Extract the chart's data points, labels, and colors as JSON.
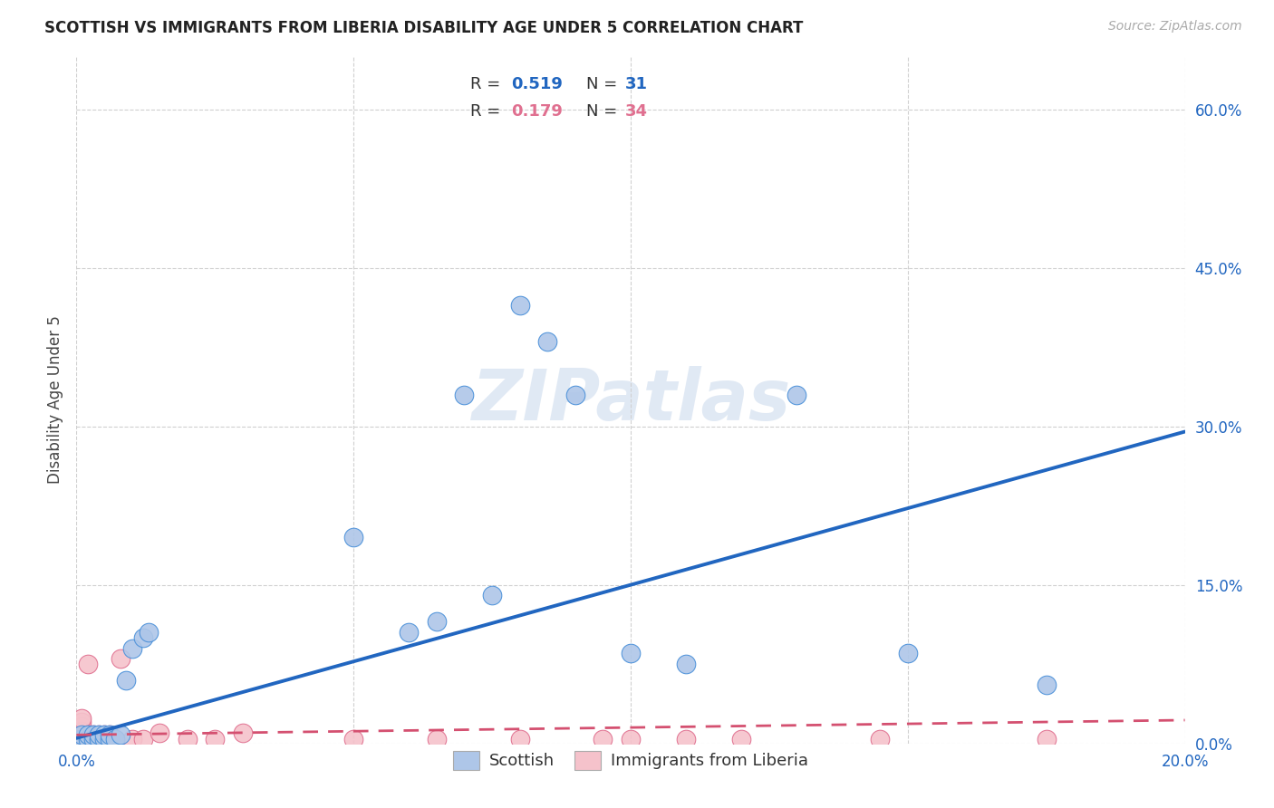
{
  "title": "SCOTTISH VS IMMIGRANTS FROM LIBERIA DISABILITY AGE UNDER 5 CORRELATION CHART",
  "source": "Source: ZipAtlas.com",
  "ylabel": "Disability Age Under 5",
  "xlim": [
    0.0,
    0.2
  ],
  "ylim": [
    0.0,
    0.65
  ],
  "yticks": [
    0.0,
    0.15,
    0.3,
    0.45,
    0.6
  ],
  "xticks": [
    0.0,
    0.05,
    0.1,
    0.15,
    0.2
  ],
  "background_color": "#ffffff",
  "grid_color": "#d0d0d0",
  "watermark": "ZIPatlas",
  "scottish": {
    "color": "#aec6e8",
    "edge_color": "#4a90d9",
    "line_color": "#2166c0",
    "R": 0.519,
    "N": 31,
    "x": [
      0.001,
      0.001,
      0.002,
      0.002,
      0.003,
      0.003,
      0.004,
      0.004,
      0.005,
      0.005,
      0.006,
      0.006,
      0.007,
      0.008,
      0.009,
      0.01,
      0.012,
      0.013,
      0.05,
      0.06,
      0.065,
      0.07,
      0.075,
      0.08,
      0.085,
      0.09,
      0.1,
      0.11,
      0.13,
      0.15,
      0.175
    ],
    "y": [
      0.004,
      0.008,
      0.004,
      0.008,
      0.004,
      0.008,
      0.004,
      0.008,
      0.004,
      0.008,
      0.004,
      0.008,
      0.004,
      0.008,
      0.06,
      0.09,
      0.1,
      0.105,
      0.195,
      0.105,
      0.115,
      0.33,
      0.14,
      0.415,
      0.38,
      0.33,
      0.085,
      0.075,
      0.33,
      0.085,
      0.055
    ],
    "trend_x": [
      0.0,
      0.2
    ],
    "trend_y": [
      0.005,
      0.295
    ]
  },
  "liberia": {
    "color": "#f5c2cb",
    "edge_color": "#e07090",
    "line_color": "#d45070",
    "R": 0.179,
    "N": 34,
    "x": [
      0.001,
      0.001,
      0.001,
      0.001,
      0.001,
      0.001,
      0.002,
      0.002,
      0.002,
      0.003,
      0.003,
      0.004,
      0.004,
      0.005,
      0.005,
      0.006,
      0.006,
      0.007,
      0.008,
      0.01,
      0.012,
      0.015,
      0.02,
      0.025,
      0.03,
      0.05,
      0.065,
      0.08,
      0.095,
      0.1,
      0.11,
      0.12,
      0.145,
      0.175
    ],
    "y": [
      0.004,
      0.008,
      0.012,
      0.016,
      0.02,
      0.024,
      0.004,
      0.008,
      0.075,
      0.004,
      0.008,
      0.004,
      0.008,
      0.004,
      0.008,
      0.004,
      0.008,
      0.004,
      0.08,
      0.004,
      0.004,
      0.01,
      0.004,
      0.004,
      0.01,
      0.004,
      0.004,
      0.004,
      0.004,
      0.004,
      0.004,
      0.004,
      0.004,
      0.004
    ],
    "trend_x": [
      0.0,
      0.2
    ],
    "trend_y": [
      0.008,
      0.022
    ]
  },
  "legend": {
    "scottish_label": "Scottish",
    "liberia_label": "Immigrants from Liberia"
  }
}
